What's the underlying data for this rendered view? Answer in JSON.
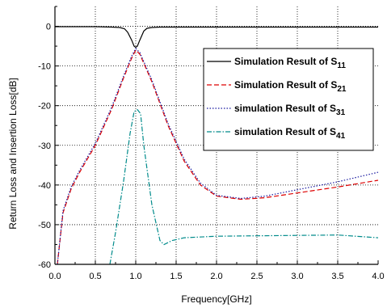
{
  "chart_data": {
    "type": "line",
    "xlabel": "Frequency[GHz]",
    "ylabel": "Return Loss and Insertion Loss[dB]",
    "xlim": [
      0.0,
      4.0
    ],
    "ylim": [
      -60,
      5
    ],
    "x_ticks": [
      "0.0",
      "0.5",
      "1.0",
      "1.5",
      "2.0",
      "2.5",
      "3.0",
      "3.5",
      "4.0"
    ],
    "y_ticks": [
      "0",
      "-10",
      "-20",
      "-30",
      "-40",
      "-50",
      "-60"
    ],
    "grid": true,
    "legend_position": "right",
    "series": [
      {
        "name": "Simulation Result of S",
        "subscript": "11",
        "color": "#000000",
        "dash": "solid",
        "x": [
          0.0,
          0.5,
          0.7,
          0.8,
          0.86,
          0.9,
          0.95,
          0.98,
          1.0,
          1.02,
          1.05,
          1.1,
          1.14,
          1.2,
          1.3,
          1.5,
          2.0,
          3.0,
          4.0
        ],
        "y": [
          -0.1,
          -0.1,
          -0.2,
          -0.3,
          -0.6,
          -1.5,
          -3.5,
          -5.0,
          -5.3,
          -5.0,
          -3.5,
          -1.2,
          -0.5,
          -0.3,
          -0.2,
          -0.2,
          -0.2,
          -0.2,
          -0.2
        ]
      },
      {
        "name": "Simulation Result of S",
        "subscript": "21",
        "color": "#dd0000",
        "dash": "dash",
        "x": [
          0.03,
          0.1,
          0.2,
          0.3,
          0.5,
          0.7,
          0.85,
          0.95,
          1.0,
          1.05,
          1.2,
          1.4,
          1.6,
          1.8,
          2.0,
          2.3,
          2.6,
          3.0,
          3.5,
          4.0
        ],
        "y": [
          -60.0,
          -47.0,
          -41.0,
          -37.0,
          -30.0,
          -21.0,
          -13.0,
          -8.0,
          -6.0,
          -7.0,
          -14.0,
          -25.0,
          -34.0,
          -40.0,
          -42.8,
          -43.6,
          -43.2,
          -42.0,
          -40.5,
          -38.8
        ]
      },
      {
        "name": "simulation Result of S",
        "subscript": "31",
        "color": "#1a1aa0",
        "dash": "dot",
        "x": [
          0.03,
          0.1,
          0.2,
          0.3,
          0.5,
          0.7,
          0.85,
          0.95,
          1.0,
          1.05,
          1.2,
          1.4,
          1.6,
          1.8,
          2.0,
          2.3,
          2.6,
          3.0,
          3.5,
          4.0
        ],
        "y": [
          -60.0,
          -46.5,
          -40.5,
          -36.5,
          -29.5,
          -20.5,
          -12.5,
          -7.5,
          -5.6,
          -6.6,
          -13.5,
          -24.5,
          -33.5,
          -39.5,
          -42.6,
          -43.4,
          -42.8,
          -41.2,
          -39.2,
          -36.8
        ]
      },
      {
        "name": "simulation Result of S",
        "subscript": "41",
        "color": "#008b8b",
        "dash": "dashdot",
        "x": [
          0.68,
          0.75,
          0.85,
          0.93,
          0.98,
          1.02,
          1.06,
          1.1,
          1.2,
          1.3,
          1.35,
          1.45,
          1.6,
          2.0,
          2.5,
          3.0,
          3.5,
          4.0
        ],
        "y": [
          -60.0,
          -52.0,
          -39.0,
          -27.0,
          -21.5,
          -21.0,
          -22.0,
          -30.0,
          -45.0,
          -54.0,
          -55.0,
          -54.0,
          -53.3,
          -52.9,
          -52.8,
          -52.7,
          -52.6,
          -53.3
        ]
      }
    ]
  }
}
